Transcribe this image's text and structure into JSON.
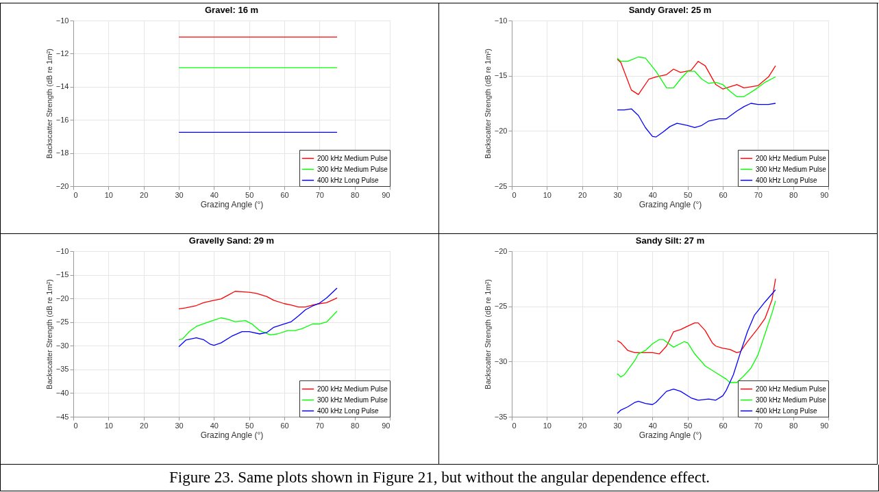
{
  "chart_data": [
    {
      "type": "line",
      "title": "Gravel: 16 m",
      "xlabel": "Grazing Angle (°)",
      "ylabel": "Backscatter Strength (dB re 1m²)",
      "xlim": [
        0,
        90
      ],
      "xticks": [
        0,
        10,
        20,
        30,
        40,
        50,
        60,
        70,
        80,
        90
      ],
      "ylim": [
        -20,
        -10
      ],
      "yticks": [
        -20,
        -18,
        -16,
        -14,
        -12,
        -10
      ],
      "grid": true,
      "legend": "bottom right",
      "series": [
        {
          "name": "200 kHz Medium Pulse",
          "color": "#ff0000",
          "x": [
            30,
            75
          ],
          "values": [
            -11,
            -11
          ]
        },
        {
          "name": "300 kHz Medium Pulse",
          "color": "#00ff00",
          "x": [
            30,
            75
          ],
          "values": [
            -12.85,
            -12.85
          ]
        },
        {
          "name": "400 kHz Long Pulse",
          "color": "#0000ff",
          "x": [
            30,
            75
          ],
          "values": [
            -16.75,
            -16.75
          ]
        }
      ]
    },
    {
      "type": "line",
      "title": "Sandy Gravel: 25 m",
      "xlabel": "Grazing Angle (°)",
      "ylabel": "Backscatter Strength (dB re 1m²)",
      "xlim": [
        0,
        90
      ],
      "xticks": [
        0,
        10,
        20,
        30,
        40,
        50,
        60,
        70,
        80,
        90
      ],
      "ylim": [
        -25,
        -10
      ],
      "yticks": [
        -25,
        -20,
        -15,
        -10
      ],
      "grid": true,
      "legend": "bottom right",
      "series": [
        {
          "name": "200 kHz Medium Pulse",
          "color": "#ff0000",
          "x": [
            30,
            31,
            34,
            36,
            39,
            41,
            44,
            46,
            48,
            51,
            53,
            55,
            58,
            60,
            62,
            64,
            66,
            68,
            70,
            73,
            75
          ],
          "values": [
            -13.5,
            -13.8,
            -16.3,
            -16.7,
            -15.3,
            -15.1,
            -14.9,
            -14.4,
            -14.7,
            -14.5,
            -13.7,
            -14.1,
            -15.8,
            -16.2,
            -16.0,
            -15.8,
            -16.1,
            -16.0,
            -15.9,
            -15.1,
            -14.1
          ]
        },
        {
          "name": "300 kHz Medium Pulse",
          "color": "#00ff00",
          "x": [
            30,
            31,
            33,
            36,
            38,
            41,
            44,
            46,
            48,
            50,
            52,
            54,
            56,
            58,
            60,
            62,
            64,
            66,
            69,
            72,
            75
          ],
          "values": [
            -13.4,
            -13.7,
            -13.7,
            -13.3,
            -13.4,
            -14.6,
            -16.1,
            -16.1,
            -15.3,
            -14.6,
            -14.6,
            -15.3,
            -15.7,
            -15.6,
            -15.8,
            -16.4,
            -16.9,
            -16.9,
            -16.3,
            -15.6,
            -15.1
          ]
        },
        {
          "name": "400 kHz Long Pulse",
          "color": "#0000ff",
          "x": [
            30,
            32,
            34,
            36,
            38,
            40,
            41,
            43,
            45,
            47,
            50,
            52,
            54,
            56,
            59,
            61,
            64,
            66,
            68,
            70,
            73,
            75
          ],
          "values": [
            -18.1,
            -18.1,
            -18.0,
            -18.6,
            -19.7,
            -20.5,
            -20.55,
            -20.1,
            -19.6,
            -19.3,
            -19.5,
            -19.7,
            -19.5,
            -19.1,
            -18.9,
            -18.9,
            -18.2,
            -17.8,
            -17.5,
            -17.6,
            -17.6,
            -17.5
          ]
        }
      ]
    },
    {
      "type": "line",
      "title": "Gravelly Sand: 29 m",
      "xlabel": "Grazing Angle (°)",
      "ylabel": "Backscatter Strength (dB re 1m²)",
      "xlim": [
        0,
        90
      ],
      "xticks": [
        0,
        10,
        20,
        30,
        40,
        50,
        60,
        70,
        80,
        90
      ],
      "ylim": [
        -45,
        -10
      ],
      "yticks": [
        -45,
        -40,
        -35,
        -30,
        -25,
        -20,
        -15,
        -10
      ],
      "grid": true,
      "legend": "bottom right",
      "series": [
        {
          "name": "200 kHz Medium Pulse",
          "color": "#ff0000",
          "x": [
            30,
            32,
            35,
            37,
            40,
            42,
            44,
            46,
            48,
            50,
            52,
            55,
            57,
            60,
            62,
            64,
            66,
            68,
            70,
            72,
            75
          ],
          "values": [
            -22.2,
            -22,
            -21.5,
            -20.9,
            -20.4,
            -20.1,
            -19.3,
            -18.5,
            -18.6,
            -18.7,
            -18.9,
            -19.6,
            -20.4,
            -21.1,
            -21.4,
            -21.8,
            -21.8,
            -21.4,
            -21.1,
            -20.9,
            -19.9
          ]
        },
        {
          "name": "300 kHz Medium Pulse",
          "color": "#00ff00",
          "x": [
            30,
            31,
            33,
            35,
            38,
            40,
            42,
            44,
            46,
            49,
            51,
            53,
            56,
            58,
            61,
            63,
            65,
            68,
            70,
            72,
            75
          ],
          "values": [
            -28.7,
            -28.6,
            -27,
            -25.9,
            -25.1,
            -24.6,
            -24.1,
            -24.4,
            -24.9,
            -24.7,
            -25.5,
            -26.8,
            -27.7,
            -27.5,
            -26.8,
            -26.8,
            -26.4,
            -25.4,
            -25.4,
            -25,
            -22.7
          ]
        },
        {
          "name": "400 kHz Long Pulse",
          "color": "#0000ff",
          "x": [
            30,
            32,
            35,
            37,
            39,
            40,
            42,
            45,
            48,
            50,
            53,
            55,
            57,
            60,
            62,
            64,
            66,
            68,
            70,
            72,
            75
          ],
          "values": [
            -30.2,
            -28.8,
            -28.3,
            -28.7,
            -29.7,
            -29.9,
            -29.4,
            -28.0,
            -27.0,
            -27.0,
            -27.5,
            -27.2,
            -26.1,
            -25.4,
            -24.9,
            -23.7,
            -22.4,
            -21.6,
            -21.0,
            -19.9,
            -17.8
          ]
        }
      ]
    },
    {
      "type": "line",
      "title": "Sandy Silt: 27 m",
      "xlabel": "Grazing Angle (°)",
      "ylabel": "Backscatter Strength (dB re 1m²)",
      "xlim": [
        0,
        90
      ],
      "xticks": [
        0,
        10,
        20,
        30,
        40,
        50,
        60,
        70,
        80,
        90
      ],
      "ylim": [
        -35,
        -20
      ],
      "yticks": [
        -35,
        -30,
        -25,
        -20
      ],
      "grid": true,
      "legend": "bottom right",
      "annotations": [
        "Figure 23. Same plots shown in Figure 21, but without the angular dependence effect."
      ],
      "series": [
        {
          "name": "200 kHz Medium Pulse",
          "color": "#ff0000",
          "x": [
            30,
            31,
            33,
            35,
            36,
            40,
            42,
            44,
            46,
            48,
            50,
            52,
            53,
            55,
            57,
            58,
            60,
            62,
            64,
            65,
            67,
            70,
            72,
            74,
            75
          ],
          "values": [
            -28.1,
            -28.3,
            -29.0,
            -29.2,
            -29.2,
            -29.2,
            -29.3,
            -28.6,
            -27.3,
            -27.1,
            -26.8,
            -26.5,
            -26.5,
            -27.2,
            -28.3,
            -28.6,
            -28.8,
            -28.9,
            -29.2,
            -29.1,
            -28.2,
            -27.0,
            -26.1,
            -24.4,
            -22.5
          ]
        },
        {
          "name": "300 kHz Medium Pulse",
          "color": "#00ff00",
          "x": [
            30,
            31,
            32,
            35,
            36,
            38,
            40,
            42,
            43,
            46,
            49,
            50,
            52,
            55,
            58,
            61,
            62,
            64,
            66,
            68,
            70,
            72,
            74,
            75
          ],
          "values": [
            -31.1,
            -31.4,
            -31.2,
            -29.9,
            -29.3,
            -29.0,
            -28.4,
            -28.0,
            -28.0,
            -28.7,
            -28.2,
            -28.3,
            -29.3,
            -30.4,
            -31.0,
            -31.6,
            -31.9,
            -31.9,
            -31.3,
            -30.6,
            -29.4,
            -27.5,
            -25.6,
            -24.5
          ]
        },
        {
          "name": "400 kHz Long Pulse",
          "color": "#0000ff",
          "x": [
            30,
            31,
            33,
            35,
            36,
            38,
            40,
            41,
            44,
            46,
            48,
            51,
            53,
            56,
            58,
            60,
            61,
            63,
            65,
            67,
            69,
            72,
            75
          ],
          "values": [
            -34.7,
            -34.4,
            -34.1,
            -33.7,
            -33.6,
            -33.8,
            -33.9,
            -33.7,
            -32.7,
            -32.5,
            -32.7,
            -33.3,
            -33.5,
            -33.4,
            -33.5,
            -33.1,
            -32.6,
            -31.2,
            -29.2,
            -27.3,
            -25.8,
            -24.6,
            -23.5
          ]
        }
      ]
    }
  ]
}
